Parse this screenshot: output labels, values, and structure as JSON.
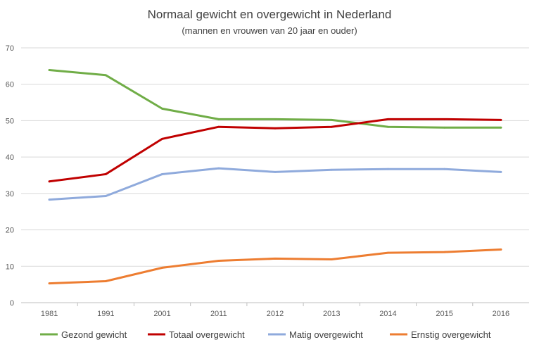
{
  "chart_data": {
    "type": "line",
    "title": "Normaal gewicht en overgewicht in Nederland",
    "subtitle": "(mannen en vrouwen van 20 jaar en ouder)",
    "xlabel": "",
    "ylabel": "",
    "categories": [
      "1981",
      "1991",
      "2001",
      "2011",
      "2012",
      "2013",
      "2014",
      "2015",
      "2016"
    ],
    "ylim": [
      0,
      70
    ],
    "yticks": [
      0,
      10,
      20,
      30,
      40,
      50,
      60,
      70
    ],
    "grid": true,
    "legend_position": "bottom",
    "series": [
      {
        "name": "Gezond gewicht",
        "color": "#70ad47",
        "values": [
          63.9,
          62.5,
          53.3,
          50.4,
          50.4,
          50.2,
          48.3,
          48.1,
          48.1
        ]
      },
      {
        "name": "Totaal overgewicht",
        "color": "#c00000",
        "values": [
          33.3,
          35.3,
          45.0,
          48.3,
          47.9,
          48.3,
          50.4,
          50.4,
          50.2
        ]
      },
      {
        "name": "Matig overgewicht",
        "color": "#8faadc",
        "values": [
          28.3,
          29.3,
          35.3,
          36.9,
          35.9,
          36.5,
          36.7,
          36.7,
          35.9
        ]
      },
      {
        "name": "Ernstig overgewicht",
        "color": "#ed7d31",
        "values": [
          5.3,
          5.9,
          9.6,
          11.5,
          12.1,
          11.9,
          13.7,
          13.9,
          14.6
        ]
      }
    ]
  }
}
